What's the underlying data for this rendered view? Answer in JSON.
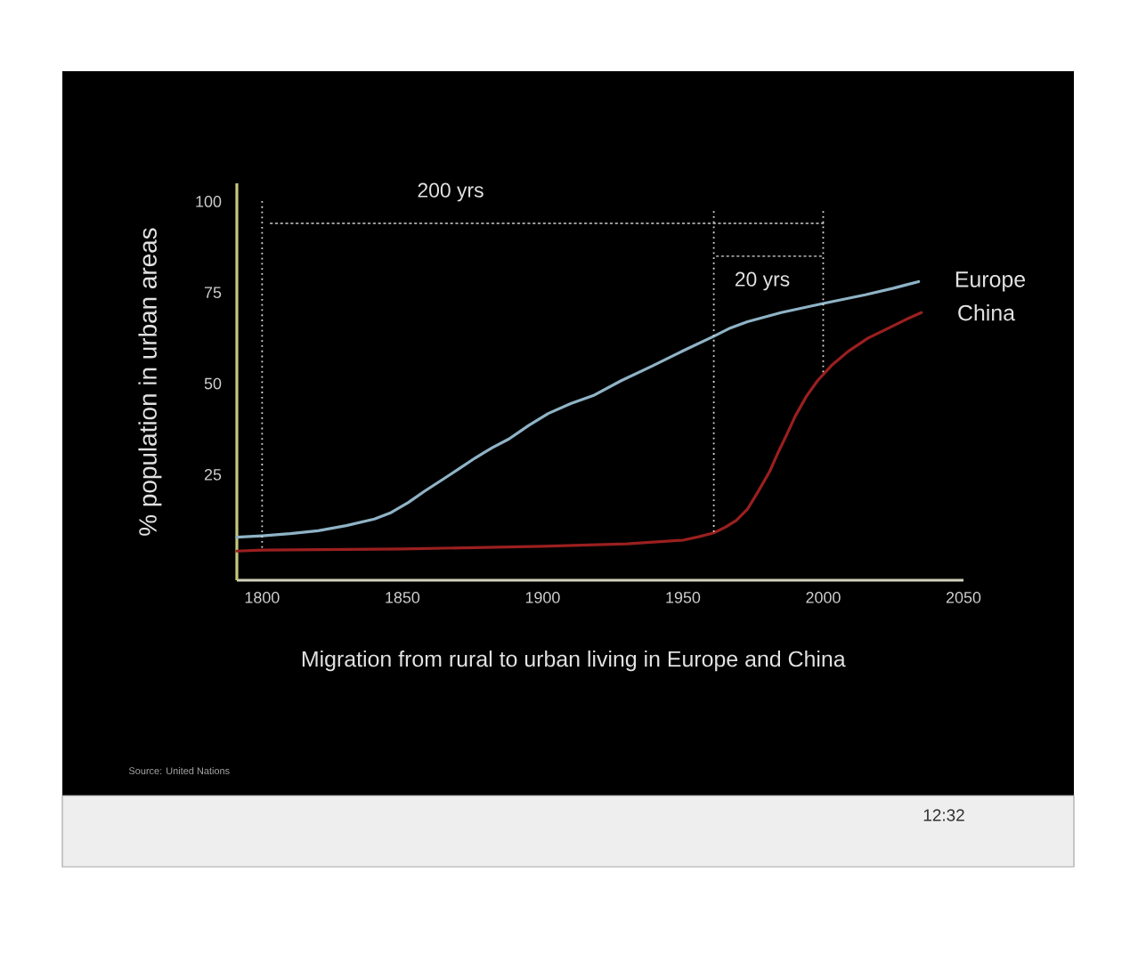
{
  "chart_data": {
    "type": "line",
    "title": "Migration from rural to urban living in Europe and China",
    "ylabel": "% population in urban areas",
    "xlim": [
      1791,
      2050
    ],
    "xticks": [
      1800,
      1850,
      1900,
      1950,
      2000,
      2050
    ],
    "ylim": [
      -4,
      105
    ],
    "yticks": [
      25,
      50,
      75,
      100
    ],
    "series": [
      {
        "name": "Europe",
        "color": "#8fb3c6",
        "x": [
          1791,
          1800,
          1810,
          1820,
          1830,
          1840,
          1846,
          1852,
          1858,
          1864,
          1870,
          1876,
          1882,
          1888,
          1895,
          1902,
          1910,
          1918,
          1928,
          1939,
          1950,
          1961,
          1967,
          1973,
          1985,
          2000,
          2015,
          2025,
          2034
        ],
        "values": [
          7.8,
          8.2,
          8.8,
          9.6,
          11,
          12.8,
          14.6,
          17.3,
          20.5,
          23.5,
          26.5,
          29.6,
          32.4,
          34.8,
          38.5,
          41.8,
          44.5,
          46.7,
          50.8,
          54.8,
          59,
          63,
          65.3,
          67,
          69.5,
          72,
          74.4,
          76.2,
          78
        ]
      },
      {
        "name": "China",
        "color": "#9b1f1f",
        "x": [
          1791,
          1800,
          1850,
          1900,
          1930,
          1950,
          1956,
          1961,
          1965,
          1969,
          1973,
          1977,
          1981,
          1984,
          1987,
          1990,
          1994,
          1998,
          2003,
          2009,
          2016,
          2024,
          2030,
          2035
        ],
        "values": [
          4.0,
          4.3,
          4.6,
          5.3,
          6.0,
          7.0,
          8.0,
          9.0,
          10.5,
          12.4,
          15.5,
          20.6,
          26,
          31.2,
          36,
          41,
          46.5,
          50.8,
          55,
          58.9,
          62.5,
          65.5,
          67.8,
          69.5
        ]
      },
      {
        "color": "#9a9a9a",
        "line_style": "dotted",
        "x": [
          1803,
          2000
        ],
        "values": [
          94,
          94
        ]
      },
      {
        "color": "#9a9a9a",
        "line_style": "dotted",
        "x": [
          1962,
          2000
        ],
        "values": [
          85,
          85
        ]
      }
    ],
    "ref_lines": [
      {
        "axis": "x",
        "value": 1800,
        "color": "#d8d8d8",
        "line_style": "dotted"
      },
      {
        "axis": "x",
        "value": 1961,
        "color": "#d8d8d8",
        "line_style": "dotted"
      },
      {
        "axis": "x",
        "value": 2000,
        "color": "#d8d8d8",
        "line_style": "dotted"
      }
    ],
    "annotations": [
      "200 yrs",
      "20 yrs",
      "Source: United Nations",
      "12:32"
    ]
  }
}
